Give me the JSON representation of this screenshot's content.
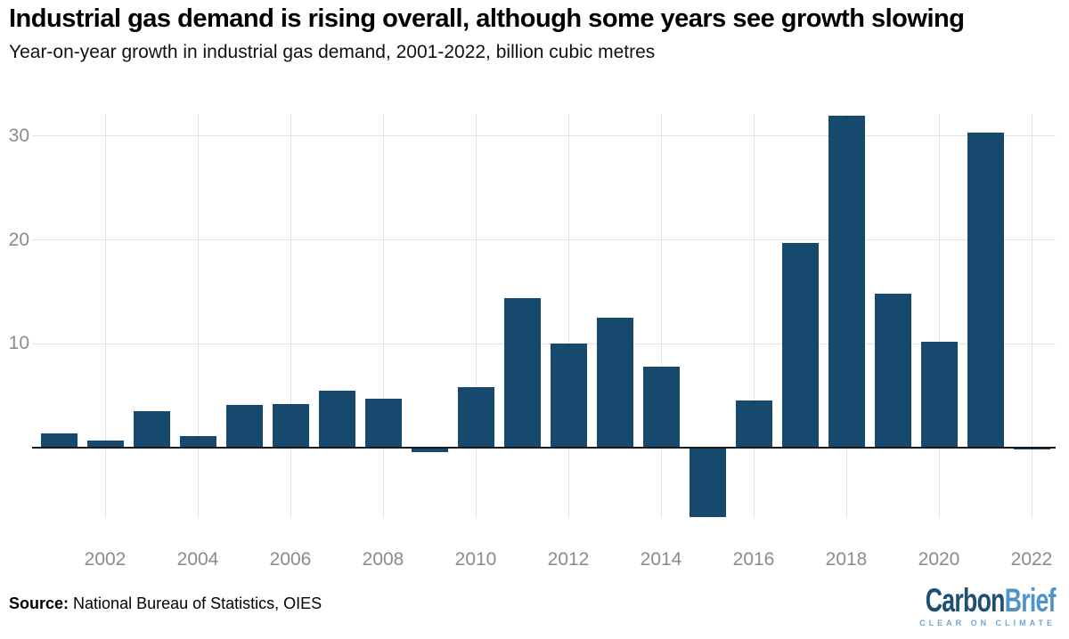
{
  "header": {
    "title": "Industrial gas demand is rising overall, although some years see growth slowing",
    "subtitle": "Year-on-year growth in industrial gas demand, 2001-2022, billion cubic metres"
  },
  "chart_data": {
    "type": "bar",
    "title": "Industrial gas demand is rising overall, although some years see growth slowing",
    "subtitle": "Year-on-year growth in industrial gas demand, 2001-2022, billion cubic metres",
    "xlabel": "",
    "ylabel": "billion cubic metres",
    "categories": [
      "2001",
      "2002",
      "2003",
      "2004",
      "2005",
      "2006",
      "2007",
      "2008",
      "2009",
      "2010",
      "2011",
      "2012",
      "2013",
      "2014",
      "2015",
      "2016",
      "2017",
      "2018",
      "2019",
      "2020",
      "2021",
      "2022"
    ],
    "values": [
      1.4,
      0.7,
      3.5,
      1.1,
      4.1,
      4.2,
      5.5,
      4.7,
      -0.4,
      5.8,
      14.4,
      10.0,
      12.5,
      7.8,
      -6.7,
      4.5,
      19.7,
      32.0,
      14.8,
      10.2,
      30.3,
      -0.2
    ],
    "yticks": [
      10,
      20,
      30
    ],
    "xtick_labels": [
      "2002",
      "2004",
      "2006",
      "2008",
      "2010",
      "2012",
      "2014",
      "2016",
      "2018",
      "2020",
      "2022"
    ],
    "ylim": [
      -6.8,
      33.2
    ],
    "grid": true,
    "legend": false,
    "bar_color": "#17496E",
    "axis_color": "#1A1A1A",
    "grid_color": "#E4E4E4",
    "tick_label_color": "#8B8B8B"
  },
  "footer": {
    "source_label": "Source:",
    "source_text": "National Bureau of Statistics, OIES"
  },
  "logo": {
    "name_part1": "Carbon",
    "name_part2": "Brief",
    "tagline": "CLEAR ON CLIMATE",
    "color_part1": "#1D4E74",
    "color_part2": "#5093C9",
    "tagline_color": "#6BA5D9"
  }
}
